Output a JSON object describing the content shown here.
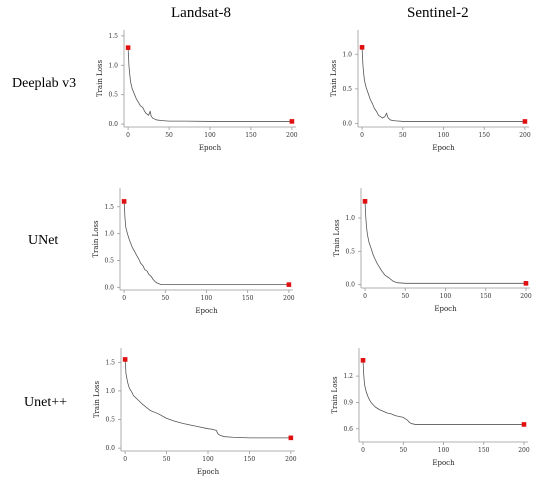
{
  "columns": [
    "Landsat-8",
    "Sentinel-2"
  ],
  "rows": [
    "Deeplab v3",
    "UNet",
    "Unet++"
  ],
  "chart_data": [
    {
      "type": "line",
      "row": "Deeplab v3",
      "column": "Landsat-8",
      "xlabel": "Epoch",
      "ylabel": "Train Loss",
      "xlim": [
        -5,
        205
      ],
      "ylim": [
        -0.05,
        1.6
      ],
      "xticks": [
        0,
        50,
        100,
        150,
        200
      ],
      "yticks": [
        0.0,
        0.5,
        1.0,
        1.5
      ],
      "ytick_labels": [
        "0.0",
        "0.5",
        "1.0",
        "1.5"
      ],
      "x": [
        0,
        1,
        2,
        3,
        5,
        8,
        10,
        13,
        15,
        18,
        20,
        22,
        25,
        26,
        27,
        28,
        30,
        35,
        40,
        50,
        70,
        100,
        150,
        200
      ],
      "y": [
        1.3,
        1.0,
        0.85,
        0.72,
        0.6,
        0.5,
        0.43,
        0.36,
        0.31,
        0.28,
        0.22,
        0.18,
        0.15,
        0.18,
        0.22,
        0.14,
        0.1,
        0.07,
        0.06,
        0.05,
        0.05,
        0.045,
        0.045,
        0.045
      ],
      "markers": [
        {
          "x": 0,
          "y": 1.3
        },
        {
          "x": 200,
          "y": 0.045
        }
      ]
    },
    {
      "type": "line",
      "row": "Deeplab v3",
      "column": "Sentinel-2",
      "xlabel": "Epoch",
      "ylabel": "Train Loss",
      "xlim": [
        -5,
        205
      ],
      "ylim": [
        -0.05,
        1.35
      ],
      "xticks": [
        0,
        50,
        100,
        150,
        200
      ],
      "yticks": [
        0.0,
        0.5,
        1.0
      ],
      "ytick_labels": [
        "0.0",
        "0.5",
        "1.0"
      ],
      "x": [
        0,
        1,
        2,
        3,
        5,
        8,
        10,
        13,
        15,
        18,
        20,
        25,
        28,
        30,
        32,
        35,
        40,
        50,
        70,
        100,
        150,
        200
      ],
      "y": [
        1.1,
        0.85,
        0.72,
        0.62,
        0.52,
        0.42,
        0.35,
        0.28,
        0.22,
        0.17,
        0.12,
        0.08,
        0.1,
        0.15,
        0.08,
        0.05,
        0.04,
        0.03,
        0.03,
        0.03,
        0.03,
        0.03
      ],
      "markers": [
        {
          "x": 0,
          "y": 1.1
        },
        {
          "x": 200,
          "y": 0.03
        }
      ]
    },
    {
      "type": "line",
      "row": "UNet",
      "column": "Landsat-8",
      "xlabel": "Epoch",
      "ylabel": "Train Loss",
      "xlim": [
        -5,
        205
      ],
      "ylim": [
        -0.05,
        1.85
      ],
      "xticks": [
        0,
        50,
        100,
        150,
        200
      ],
      "yticks": [
        0.0,
        0.5,
        1.0,
        1.5
      ],
      "ytick_labels": [
        "0.0",
        "0.5",
        "1.0",
        "1.5"
      ],
      "x": [
        0,
        1,
        2,
        4,
        6,
        8,
        10,
        13,
        15,
        18,
        20,
        23,
        25,
        28,
        30,
        33,
        35,
        38,
        40,
        45,
        50,
        70,
        100,
        150,
        200
      ],
      "y": [
        1.6,
        1.3,
        1.12,
        1.0,
        0.9,
        0.82,
        0.74,
        0.66,
        0.6,
        0.52,
        0.45,
        0.4,
        0.33,
        0.3,
        0.24,
        0.2,
        0.15,
        0.1,
        0.08,
        0.05,
        0.05,
        0.05,
        0.05,
        0.05,
        0.05
      ],
      "markers": [
        {
          "x": 0,
          "y": 1.6
        },
        {
          "x": 200,
          "y": 0.05
        }
      ]
    },
    {
      "type": "line",
      "row": "UNet",
      "column": "Sentinel-2",
      "xlabel": "Epoch",
      "ylabel": "Train Loss",
      "xlim": [
        -5,
        205
      ],
      "ylim": [
        -0.05,
        1.45
      ],
      "xticks": [
        0,
        50,
        100,
        150,
        200
      ],
      "yticks": [
        0.0,
        0.5,
        1.0
      ],
      "ytick_labels": [
        "0.0",
        "0.5",
        "1.0"
      ],
      "x": [
        0,
        1,
        2,
        3,
        5,
        8,
        10,
        13,
        15,
        18,
        20,
        25,
        30,
        35,
        40,
        50,
        70,
        100,
        150,
        200
      ],
      "y": [
        1.25,
        1.0,
        0.85,
        0.75,
        0.63,
        0.53,
        0.45,
        0.37,
        0.32,
        0.26,
        0.22,
        0.14,
        0.1,
        0.05,
        0.03,
        0.02,
        0.02,
        0.02,
        0.02,
        0.02
      ],
      "markers": [
        {
          "x": 0,
          "y": 1.25
        },
        {
          "x": 200,
          "y": 0.02
        }
      ]
    },
    {
      "type": "line",
      "row": "Unet++",
      "column": "Landsat-8",
      "xlabel": "Epoch",
      "ylabel": "Train Loss",
      "xlim": [
        -5,
        205
      ],
      "ylim": [
        -0.05,
        1.75
      ],
      "xticks": [
        0,
        50,
        100,
        150,
        200
      ],
      "yticks": [
        0.0,
        0.5,
        1.0,
        1.5
      ],
      "ytick_labels": [
        "0.0",
        "0.5",
        "1.0",
        "1.5"
      ],
      "x": [
        0,
        1,
        3,
        5,
        8,
        10,
        15,
        20,
        25,
        30,
        40,
        50,
        60,
        70,
        80,
        90,
        100,
        105,
        110,
        112,
        115,
        120,
        130,
        150,
        175,
        200
      ],
      "y": [
        1.55,
        1.3,
        1.15,
        1.05,
        0.98,
        0.92,
        0.85,
        0.78,
        0.72,
        0.66,
        0.6,
        0.52,
        0.47,
        0.43,
        0.4,
        0.37,
        0.34,
        0.33,
        0.31,
        0.25,
        0.22,
        0.2,
        0.19,
        0.18,
        0.18,
        0.18
      ],
      "markers": [
        {
          "x": 0,
          "y": 1.55
        },
        {
          "x": 200,
          "y": 0.18
        }
      ]
    },
    {
      "type": "line",
      "row": "Unet++",
      "column": "Sentinel-2",
      "xlabel": "Epoch",
      "ylabel": "Train Loss",
      "xlim": [
        -5,
        205
      ],
      "ylim": [
        0.45,
        1.52
      ],
      "xticks": [
        0,
        50,
        100,
        150,
        200
      ],
      "yticks": [
        0.6,
        0.9,
        1.2
      ],
      "ytick_labels": [
        "0.6",
        "0.9",
        "1.2"
      ],
      "x": [
        0,
        1,
        2,
        4,
        6,
        8,
        10,
        15,
        20,
        25,
        30,
        35,
        40,
        45,
        50,
        55,
        58,
        60,
        65,
        70,
        100,
        150,
        200
      ],
      "y": [
        1.38,
        1.2,
        1.1,
        1.02,
        0.97,
        0.93,
        0.9,
        0.85,
        0.82,
        0.8,
        0.78,
        0.77,
        0.75,
        0.74,
        0.73,
        0.7,
        0.67,
        0.66,
        0.65,
        0.65,
        0.65,
        0.65,
        0.65
      ],
      "markers": [
        {
          "x": 0,
          "y": 1.38
        },
        {
          "x": 200,
          "y": 0.65
        }
      ]
    }
  ],
  "colors": {
    "line": "#555555",
    "marker": "#e11010",
    "axis": "#999999",
    "text": "#000000"
  }
}
